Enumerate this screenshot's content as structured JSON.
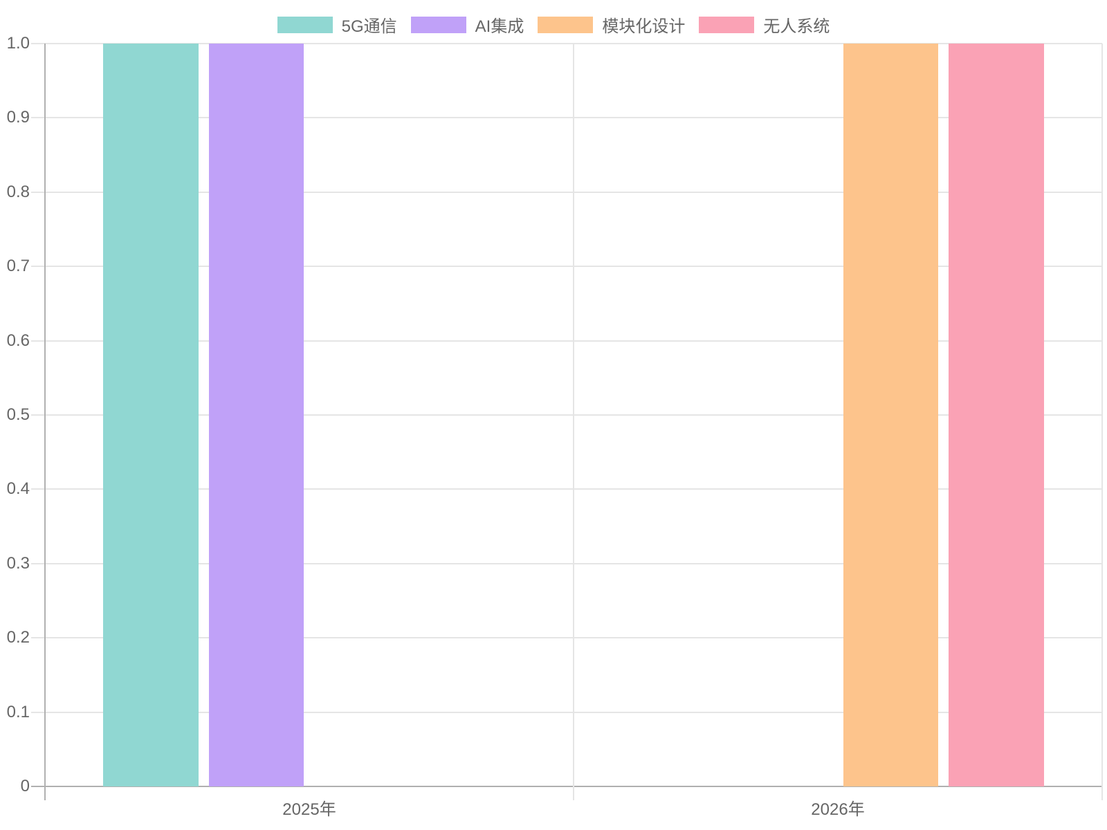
{
  "chart_data": {
    "type": "bar",
    "title": "",
    "categories": [
      "2025年",
      "2026年"
    ],
    "series": [
      {
        "name": "5G通信",
        "color": "#90D7D2",
        "values": [
          1,
          null
        ]
      },
      {
        "name": "AI集成",
        "color": "#C0A1F8",
        "values": [
          1,
          null
        ]
      },
      {
        "name": "模块化设计",
        "color": "#FDC48C",
        "values": [
          null,
          1
        ]
      },
      {
        "name": "无人系统",
        "color": "#FAA2B5",
        "values": [
          null,
          1
        ]
      }
    ],
    "ylim": [
      0,
      1
    ],
    "ytick_labels_top_to_bottom": [
      "1.0",
      "0.9",
      "0.8",
      "0.7",
      "0.6",
      "0.5",
      "0.4",
      "0.3",
      "0.2",
      "0.1",
      "0"
    ],
    "grid": true,
    "legend_position": "top",
    "colors": {
      "axis_text": "#666666",
      "grid_line": "#E5E5E5",
      "axis_line": "#B0B0B0",
      "background": "#FFFFFF"
    }
  }
}
